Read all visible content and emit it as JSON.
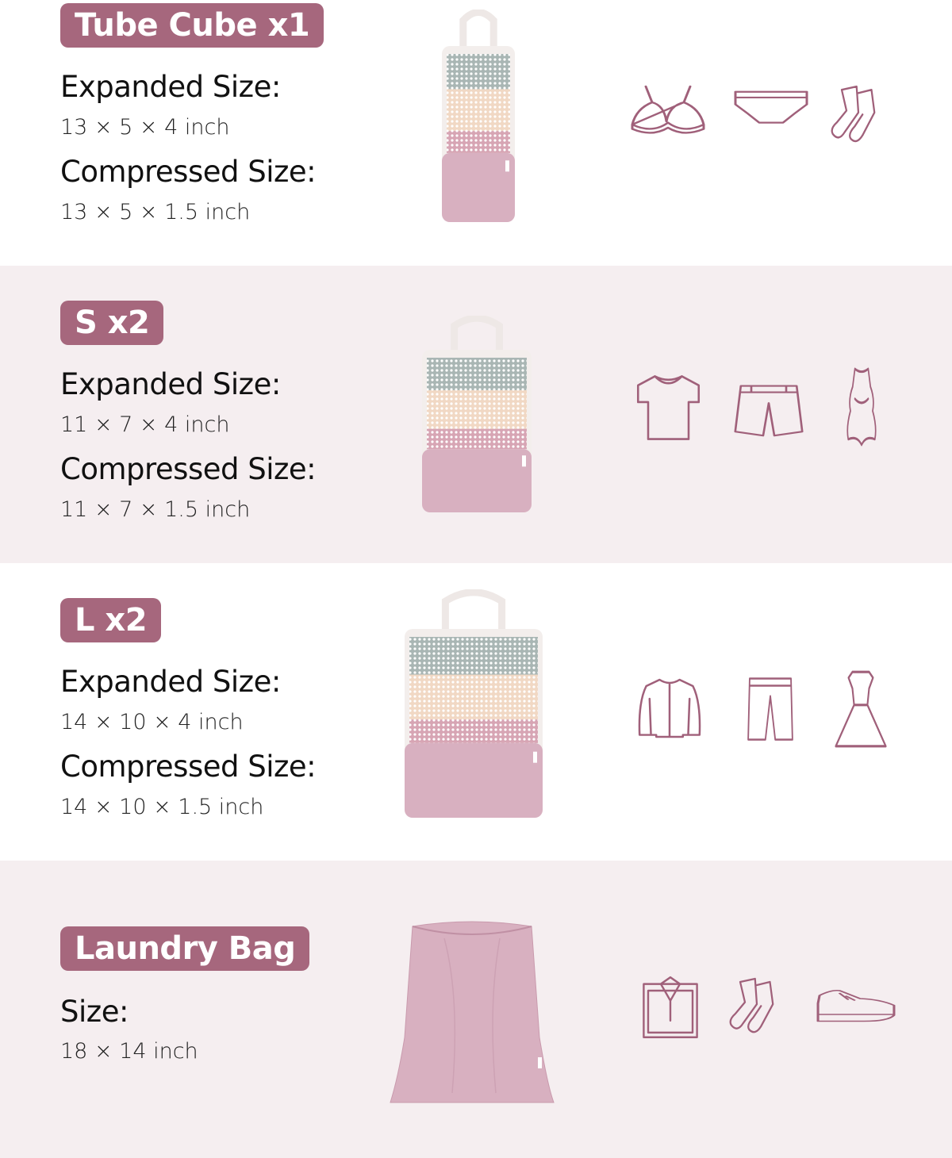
{
  "colors": {
    "badge": "#a6677d",
    "icon_stroke": "#a0607a",
    "band_alt": "#f5eef0",
    "bag_pink": "#d8b0c0"
  },
  "sections": [
    {
      "badge": "Tube Cube x1",
      "label1": "Expanded Size:",
      "value1": "13 × 5 × 4 inch",
      "label2": "Compressed Size:",
      "value2": "13 × 5 × 1.5 inch",
      "image": "tube-cube",
      "icons": [
        "bra-icon",
        "underwear-icon",
        "socks-icon"
      ]
    },
    {
      "badge": "S x2",
      "label1": "Expanded Size:",
      "value1": "11 × 7 × 4 inch",
      "label2": "Compressed Size:",
      "value2": "11 × 7 × 1.5 inch",
      "image": "small-cube",
      "icons": [
        "tshirt-icon",
        "shorts-icon",
        "swimsuit-icon"
      ]
    },
    {
      "badge": "L x2",
      "label1": "Expanded Size:",
      "value1": "14 × 10 × 4 inch",
      "label2": "Compressed Size:",
      "value2": "14 × 10 × 1.5 inch",
      "image": "large-cube",
      "icons": [
        "jacket-icon",
        "pants-icon",
        "dress-icon"
      ]
    },
    {
      "badge": "Laundry Bag",
      "label1": "Size:",
      "value1": "18 × 14 inch",
      "image": "laundry-bag",
      "icons": [
        "folded-shirt-icon",
        "socks-icon",
        "sneaker-icon"
      ]
    }
  ]
}
